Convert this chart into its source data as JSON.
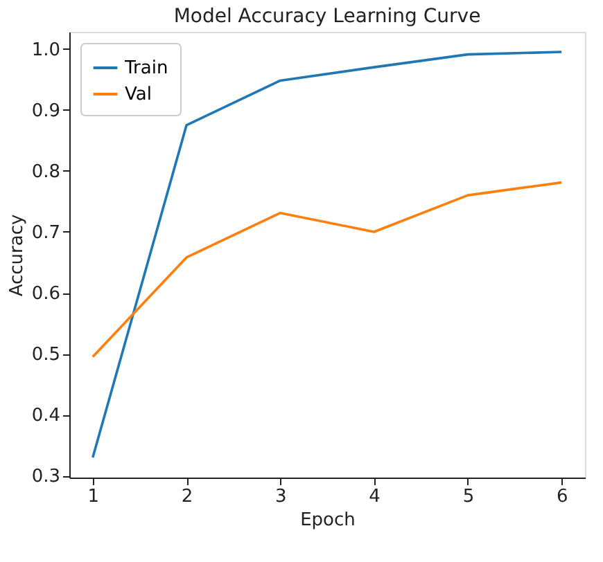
{
  "chart_data": {
    "type": "line",
    "title": "Model Accuracy Learning Curve",
    "xlabel": "Epoch",
    "ylabel": "Accuracy",
    "x": [
      1,
      2,
      3,
      4,
      5,
      6
    ],
    "series": [
      {
        "name": "Train",
        "color": "#1f77b4",
        "values": [
          0.33,
          0.875,
          0.948,
          0.97,
          0.991,
          0.995
        ]
      },
      {
        "name": "Val",
        "color": "#ff7f0e",
        "values": [
          0.495,
          0.658,
          0.731,
          0.7,
          0.76,
          0.781
        ]
      }
    ],
    "xlim": [
      0.75,
      6.25
    ],
    "xticks": [
      1,
      2,
      3,
      4,
      5,
      6
    ],
    "ylim": [
      0.297,
      1.028
    ],
    "yticks": [
      0.3,
      0.4,
      0.5,
      0.6,
      0.7,
      0.8,
      0.9,
      {
        "value": 1.0,
        "label": "1.0"
      }
    ],
    "grid": false,
    "legend": "top left",
    "marker": "none",
    "line_style": "solid"
  }
}
